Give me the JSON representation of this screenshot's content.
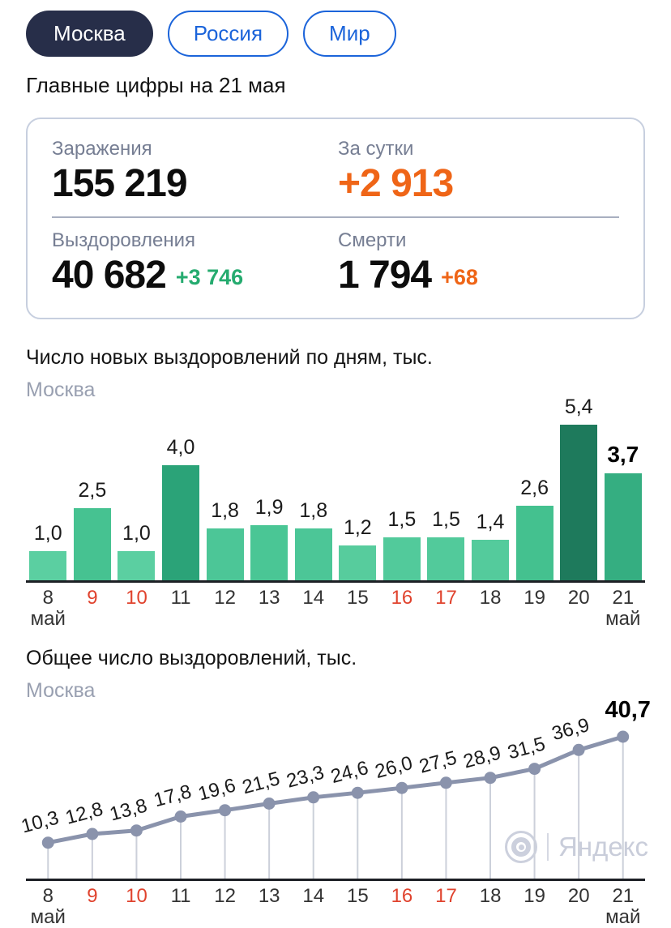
{
  "tabs": {
    "items": [
      {
        "label": "Москва",
        "active": true
      },
      {
        "label": "Россия",
        "active": false
      },
      {
        "label": "Мир",
        "active": false
      }
    ]
  },
  "header": {
    "title": "Главные цифры на 21 мая"
  },
  "summary": {
    "infections_label": "Заражения",
    "infections_value": "155 219",
    "daily_label": "За сутки",
    "daily_value": "+2 913",
    "recovered_label": "Выздоровления",
    "recovered_value": "40 682",
    "recovered_delta": "+3 746",
    "deaths_label": "Смерти",
    "deaths_value": "1 794",
    "deaths_delta": "+68"
  },
  "watermark": {
    "brand": "Яндекс"
  },
  "colors": {
    "tab_active_bg": "#272e49",
    "tab_blue": "#1b64da",
    "accent_orange": "#ef6517",
    "accent_green": "#25ab6f",
    "weekend_red": "#e0432e",
    "axis": "#1d2025",
    "line": "#8a93ac",
    "drop_line": "#ccd0da",
    "watermark_gray": "#c9cdda"
  },
  "chart_data": [
    {
      "type": "bar",
      "title": "Число новых выздоровлений по дням, тыс.",
      "subtitle": "Москва",
      "categories": [
        "8",
        "9",
        "10",
        "11",
        "12",
        "13",
        "14",
        "15",
        "16",
        "17",
        "18",
        "19",
        "20",
        "21"
      ],
      "month_label": "май",
      "weekend_indices": [
        1,
        2,
        8,
        9
      ],
      "values": [
        1.0,
        2.5,
        1.0,
        4.0,
        1.8,
        1.9,
        1.8,
        1.2,
        1.5,
        1.5,
        1.4,
        2.6,
        5.4,
        3.7
      ],
      "labels": [
        "1,0",
        "2,5",
        "1,0",
        "4,0",
        "1,8",
        "1,9",
        "1,8",
        "1,2",
        "1,5",
        "1,5",
        "1,4",
        "2,6",
        "5,4",
        "3,7"
      ],
      "bar_colors": [
        "#5bcfa1",
        "#46c291",
        "#5bcfa1",
        "#2ba378",
        "#4cc697",
        "#4ac695",
        "#4cc697",
        "#57cc9d",
        "#52ca9b",
        "#52ca9b",
        "#54cb9c",
        "#44c18f",
        "#1e7a5c",
        "#35ae81"
      ],
      "xlabel": "",
      "ylabel": "",
      "ylim": [
        0,
        5.5
      ],
      "grid": false,
      "legend": null
    },
    {
      "type": "line",
      "title": "Общее число выздоровлений, тыс.",
      "subtitle": "Москва",
      "categories": [
        "8",
        "9",
        "10",
        "11",
        "12",
        "13",
        "14",
        "15",
        "16",
        "17",
        "18",
        "19",
        "20",
        "21"
      ],
      "month_label": "май",
      "weekend_indices": [
        1,
        2,
        8,
        9
      ],
      "values": [
        10.3,
        12.8,
        13.8,
        17.8,
        19.6,
        21.5,
        23.3,
        24.6,
        26.0,
        27.5,
        28.9,
        31.5,
        36.9,
        40.7
      ],
      "labels": [
        "10,3",
        "12,8",
        "13,8",
        "17,8",
        "19,6",
        "21,5",
        "23,3",
        "24,6",
        "26,0",
        "27,5",
        "28,9",
        "31,5",
        "36,9",
        "40,7"
      ],
      "xlabel": "",
      "ylabel": "",
      "ylim": [
        0,
        41
      ],
      "grid": false,
      "legend": null
    }
  ]
}
